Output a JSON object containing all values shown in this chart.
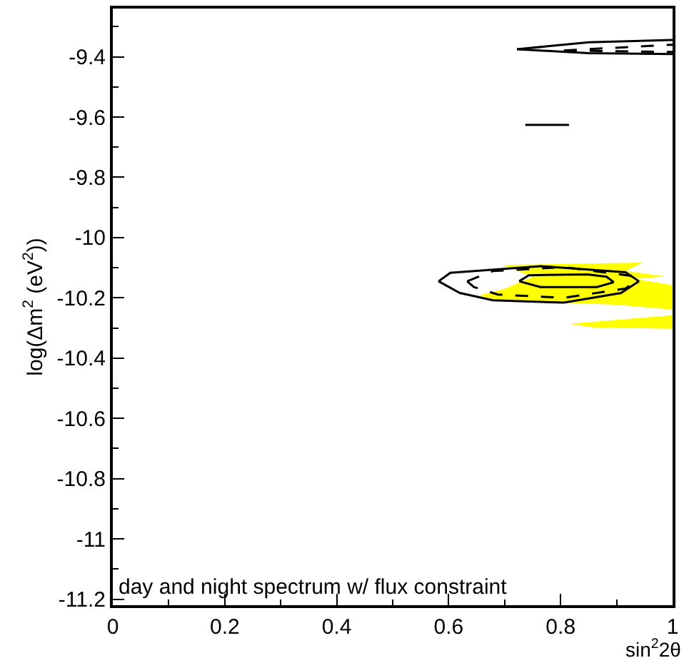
{
  "chart_data": {
    "type": "line",
    "xlabel": "sin$^{2}$2θ",
    "ylabel": "log(Δm$^{2}$ (eV$^{2}$))",
    "xlim": [
      0,
      1
    ],
    "ylim": [
      -11.22,
      -9.24
    ],
    "xticks": [
      0,
      0.2,
      0.4,
      0.6,
      0.8,
      1
    ],
    "yticks": [
      -11.2,
      -11,
      -10.8,
      -10.6,
      -10.4,
      -10.2,
      -10,
      -9.8,
      -9.6,
      -9.4
    ],
    "marker": "none",
    "annotations": [
      "day and night spectrum w/ flux constraint"
    ],
    "series": [
      {
        "type": "area",
        "color": "#ffff00",
        "x": [
          0.654,
          0.7,
          0.75,
          0.696,
          0.946,
          0.916,
          0.988,
          0.933,
          1.0,
          1.0,
          0.899,
          0.688,
          0.654
        ],
        "values": [
          -10.192,
          -10.17,
          -10.13,
          -10.091,
          -10.083,
          -10.111,
          -10.129,
          -10.137,
          -10.158,
          -10.239,
          -10.223,
          -10.208,
          -10.192
        ]
      },
      {
        "type": "area",
        "color": "#ffff00",
        "x": [
          0.815,
          1.0,
          1.0,
          0.857,
          0.815
        ],
        "values": [
          -10.286,
          -10.258,
          -10.303,
          -10.298,
          -10.286
        ]
      },
      {
        "color": "#000000",
        "line_style": "solid",
        "x": [
          0.582,
          0.603,
          0.764,
          0.916,
          0.94
        ],
        "values": [
          -10.145,
          -10.117,
          -10.095,
          -10.115,
          -10.145
        ]
      },
      {
        "color": "#000000",
        "line_style": "solid",
        "x": [
          0.582,
          0.62,
          0.679,
          0.806,
          0.908,
          0.94
        ],
        "values": [
          -10.145,
          -10.184,
          -10.208,
          -10.216,
          -10.184,
          -10.145
        ]
      },
      {
        "color": "#000000",
        "line_style": "dashed",
        "x": [
          0.633,
          0.679,
          0.806,
          0.925,
          0.933
        ],
        "values": [
          -10.145,
          -10.111,
          -10.098,
          -10.127,
          -10.145
        ]
      },
      {
        "color": "#000000",
        "line_style": "dashed",
        "x": [
          0.633,
          0.645,
          0.688,
          0.806,
          0.916,
          0.933
        ],
        "values": [
          -10.145,
          -10.164,
          -10.189,
          -10.2,
          -10.169,
          -10.145
        ]
      },
      {
        "color": "#000000",
        "line_style": "solid",
        "x": [
          0.726,
          0.743,
          0.848,
          0.882,
          0.895
        ],
        "values": [
          -10.145,
          -10.125,
          -10.122,
          -10.13,
          -10.148
        ]
      },
      {
        "color": "#000000",
        "line_style": "solid",
        "x": [
          0.726,
          0.764,
          0.865,
          0.895
        ],
        "values": [
          -10.145,
          -10.164,
          -10.164,
          -10.148
        ]
      },
      {
        "color": "#000000",
        "line_style": "solid",
        "x": [
          0.722,
          0.85,
          1.0
        ],
        "values": [
          -9.375,
          -9.352,
          -9.344
        ]
      },
      {
        "color": "#000000",
        "line_style": "solid",
        "x": [
          0.722,
          0.85,
          1.0
        ],
        "values": [
          -9.375,
          -9.388,
          -9.391
        ]
      },
      {
        "color": "#000000",
        "line_style": "dashed",
        "x": [
          0.806,
          1.0
        ],
        "values": [
          -9.379,
          -9.36
        ]
      },
      {
        "color": "#000000",
        "line_style": "dashed",
        "x": [
          0.806,
          1.0
        ],
        "values": [
          -9.379,
          -9.384
        ]
      },
      {
        "color": "#000000",
        "line_style": "solid",
        "x": [
          0.737,
          0.815
        ],
        "values": [
          -9.626,
          -9.626
        ]
      }
    ]
  }
}
